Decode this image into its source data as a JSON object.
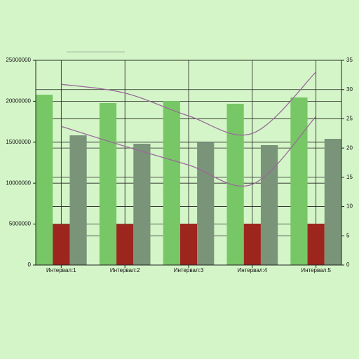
{
  "chart_data": {
    "type": "bar",
    "categories": [
      "Интервал:1",
      "Интервал:2",
      "Интервал:3",
      "Интервал:4",
      "Интервал:5"
    ],
    "series": [
      {
        "type": "bar",
        "color": "#78c766",
        "values": [
          20800000,
          19780000,
          20030000,
          19690000,
          20460000
        ]
      },
      {
        "type": "bar",
        "color": "#9c261e",
        "values": [
          5000000,
          5000000,
          5050000,
          5050000,
          5050000
        ]
      },
      {
        "type": "bar",
        "color": "#7a9479",
        "values": [
          15840000,
          14810000,
          14980000,
          14640000,
          15410000
        ]
      },
      {
        "type": "line",
        "axis": "y2",
        "color": "#9a6a9a",
        "values": [
          30.9,
          29.4,
          25.5,
          22.5,
          33.0
        ]
      },
      {
        "type": "line",
        "axis": "y2",
        "color": "#9a6a9a",
        "values": [
          23.7,
          20.3,
          17.1,
          13.8,
          25.4
        ]
      }
    ],
    "ylim": [
      0,
      25000000
    ],
    "yticks": [
      0,
      5000000,
      10000000,
      15000000,
      20000000,
      25000000
    ],
    "y2lim": [
      0,
      35
    ],
    "y2ticks": [
      0,
      5,
      10,
      15,
      20,
      25,
      30,
      35
    ],
    "grid": true
  }
}
